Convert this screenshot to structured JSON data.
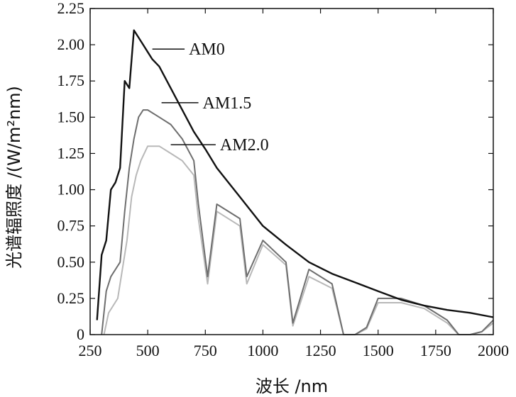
{
  "chart_data": {
    "type": "line",
    "title": "",
    "xlabel": "波长 /nm",
    "ylabel": "光谱辐照度 /(W/m²nm)",
    "xlim": [
      250,
      2000
    ],
    "ylim": [
      0,
      2.25
    ],
    "xticks": [
      250,
      500,
      750,
      1000,
      1250,
      1500,
      1750,
      2000
    ],
    "yticks": [
      0,
      0.25,
      0.5,
      0.75,
      1.0,
      1.25,
      1.5,
      1.75,
      2.0,
      2.25
    ],
    "xtick_labels": [
      "250",
      "500",
      "750",
      "1000",
      "1250",
      "1500",
      "1750",
      "2000"
    ],
    "ytick_labels": [
      "0",
      "0.25",
      "0.50",
      "0.75",
      "1.00",
      "1.25",
      "1.50",
      "1.75",
      "2.00",
      "2.25"
    ],
    "grid": false,
    "legend": "inline labels with leader lines",
    "series": [
      {
        "name": "AM0",
        "color": "#111111",
        "x": [
          280,
          300,
          320,
          340,
          360,
          380,
          400,
          420,
          440,
          460,
          480,
          500,
          520,
          550,
          600,
          650,
          700,
          750,
          800,
          900,
          1000,
          1100,
          1200,
          1300,
          1400,
          1500,
          1600,
          1700,
          1800,
          1900,
          2000
        ],
        "y": [
          0.1,
          0.55,
          0.65,
          1.0,
          1.05,
          1.15,
          1.75,
          1.7,
          2.1,
          2.05,
          2.0,
          1.95,
          1.9,
          1.85,
          1.7,
          1.55,
          1.4,
          1.28,
          1.15,
          0.95,
          0.75,
          0.62,
          0.5,
          0.42,
          0.36,
          0.3,
          0.24,
          0.2,
          0.17,
          0.15,
          0.12
        ]
      },
      {
        "name": "AM1.5",
        "color": "#6e6e6e",
        "x": [
          300,
          320,
          340,
          360,
          380,
          400,
          420,
          440,
          460,
          480,
          500,
          550,
          600,
          650,
          700,
          720,
          760,
          800,
          900,
          930,
          1000,
          1100,
          1130,
          1200,
          1300,
          1350,
          1400,
          1450,
          1500,
          1600,
          1700,
          1800,
          1850,
          1900,
          1950,
          2000
        ],
        "y": [
          0.0,
          0.3,
          0.4,
          0.45,
          0.5,
          0.85,
          1.15,
          1.35,
          1.5,
          1.55,
          1.55,
          1.5,
          1.45,
          1.35,
          1.2,
          0.9,
          0.4,
          0.9,
          0.8,
          0.4,
          0.65,
          0.5,
          0.08,
          0.45,
          0.35,
          0.0,
          0.0,
          0.05,
          0.25,
          0.25,
          0.2,
          0.1,
          0.0,
          0.0,
          0.02,
          0.1
        ]
      },
      {
        "name": "AM2.0",
        "color": "#b8b8b8",
        "x": [
          310,
          330,
          350,
          370,
          390,
          410,
          430,
          450,
          470,
          500,
          550,
          600,
          650,
          700,
          720,
          760,
          800,
          900,
          930,
          1000,
          1100,
          1130,
          1200,
          1300,
          1350,
          1400,
          1450,
          1500,
          1600,
          1700,
          1800,
          1850,
          1900,
          1950,
          2000
        ],
        "y": [
          0.0,
          0.15,
          0.2,
          0.25,
          0.45,
          0.65,
          0.95,
          1.1,
          1.2,
          1.3,
          1.3,
          1.25,
          1.2,
          1.1,
          0.8,
          0.35,
          0.85,
          0.75,
          0.35,
          0.62,
          0.48,
          0.06,
          0.4,
          0.32,
          0.0,
          0.0,
          0.04,
          0.22,
          0.22,
          0.18,
          0.08,
          0.0,
          0.0,
          0.02,
          0.08
        ]
      }
    ],
    "annotations": [
      {
        "text": "AM0",
        "series": "AM0"
      },
      {
        "text": "AM1.5",
        "series": "AM1.5"
      },
      {
        "text": "AM2.0",
        "series": "AM2.0"
      }
    ]
  }
}
